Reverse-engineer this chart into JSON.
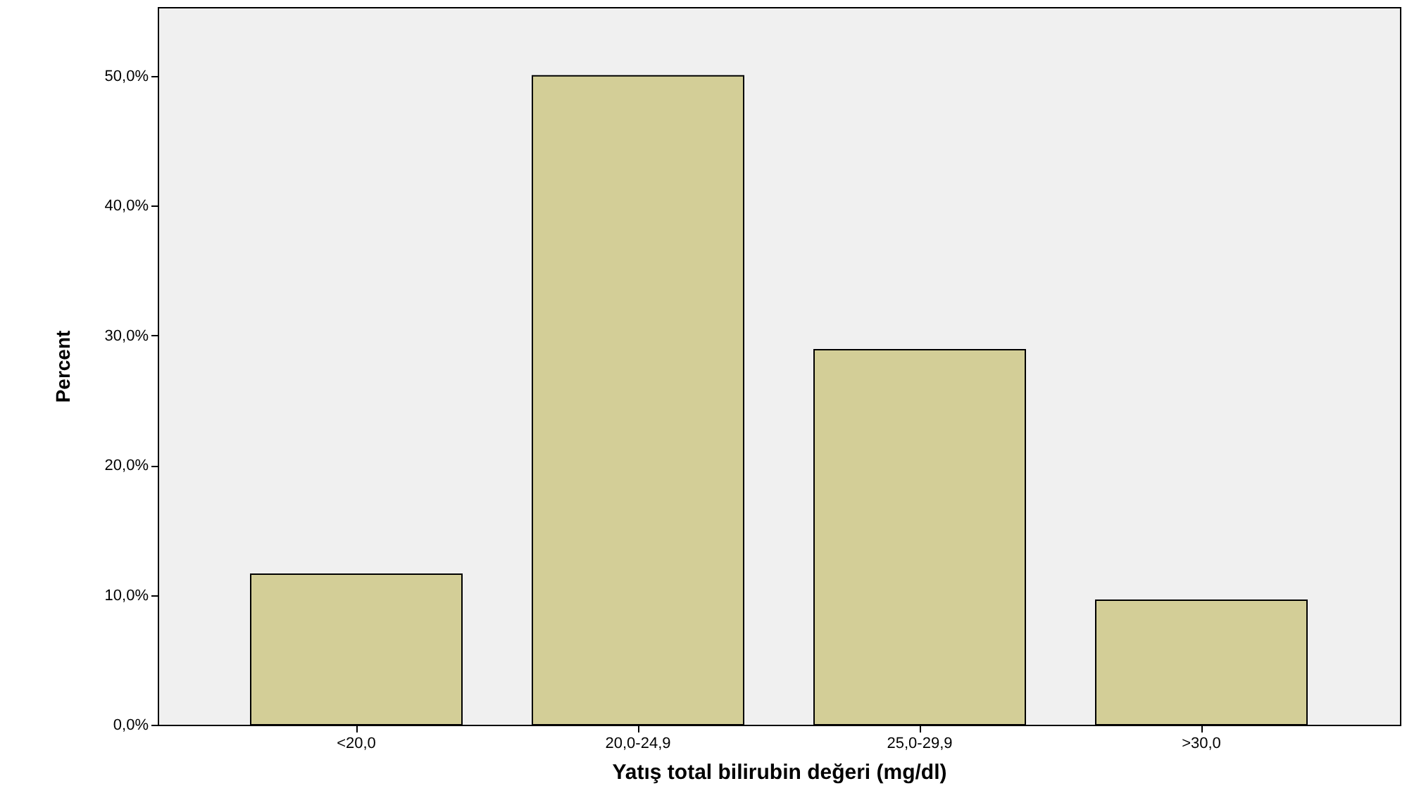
{
  "chart_data": {
    "type": "bar",
    "xlabel": "Yatış total bilirubin değeri (mg/dl)",
    "ylabel": "Percent",
    "categories": [
      "<20,0",
      "20,0-24,9",
      "25,0-29,9",
      ">30,0"
    ],
    "values": [
      11.6,
      50.0,
      28.9,
      9.6
    ],
    "color": "#d3ce97",
    "ylim": [
      0,
      55.3
    ],
    "yticks": [
      {
        "value": 0,
        "label": "0,0%"
      },
      {
        "value": 10,
        "label": "10,0%"
      },
      {
        "value": 20,
        "label": "20,0%"
      },
      {
        "value": 30,
        "label": "30,0%"
      },
      {
        "value": 40,
        "label": "40,0%"
      },
      {
        "value": 50,
        "label": "50,0%"
      }
    ],
    "grid": false
  }
}
